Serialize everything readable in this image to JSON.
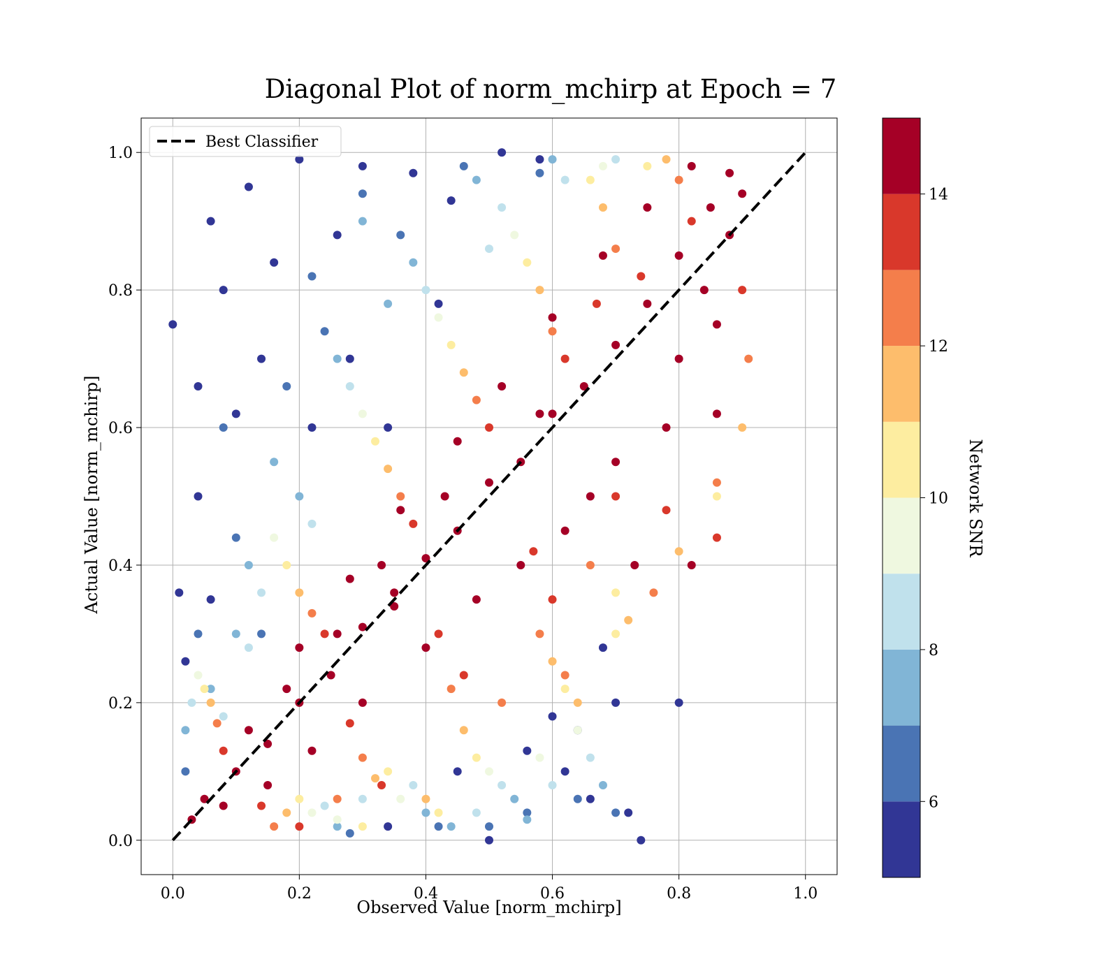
{
  "figure": {
    "title": "Diagonal Plot of norm_mchirp at Epoch = 7"
  },
  "chart_data": {
    "type": "scatter",
    "title": "Diagonal Plot of norm_mchirp at Epoch = 7",
    "xlabel": "Observed Value [norm_mchirp]",
    "ylabel": "Actual Value [norm_mchirp]",
    "xlim": [
      -0.05,
      1.05
    ],
    "ylim": [
      -0.05,
      1.05
    ],
    "x_ticks": [
      "0.0",
      "0.2",
      "0.4",
      "0.6",
      "0.8",
      "1.0"
    ],
    "y_ticks": [
      "0.0",
      "0.2",
      "0.4",
      "0.6",
      "0.8",
      "1.0"
    ],
    "grid": true,
    "legend": {
      "placement": "upper-left",
      "entries": [
        {
          "label": "Best Classifier",
          "style": "dashed",
          "color": "#000000"
        }
      ]
    },
    "reference_line": {
      "name": "Best Classifier",
      "x": [
        0.0,
        1.0
      ],
      "y": [
        0.0,
        1.0
      ]
    },
    "colorbar": {
      "label": "Network SNR",
      "range": [
        5,
        15
      ],
      "ticks": [
        "6",
        "8",
        "10",
        "12",
        "14"
      ],
      "bins": [
        {
          "from": 5,
          "to": 6,
          "color": "#313695"
        },
        {
          "from": 6,
          "to": 7,
          "color": "#4a74b4"
        },
        {
          "from": 7,
          "to": 8,
          "color": "#81b5d6"
        },
        {
          "from": 8,
          "to": 9,
          "color": "#c0e1ec"
        },
        {
          "from": 9,
          "to": 10,
          "color": "#eff8e0"
        },
        {
          "from": 10,
          "to": 11,
          "color": "#fdeda0"
        },
        {
          "from": 11,
          "to": 12,
          "color": "#fdbd6c"
        },
        {
          "from": 12,
          "to": 13,
          "color": "#f47e4b"
        },
        {
          "from": 13,
          "to": 14,
          "color": "#d9382b"
        },
        {
          "from": 14,
          "to": 15,
          "color": "#a50026"
        }
      ]
    },
    "series": [
      {
        "snr_bin": "14-15",
        "points": [
          [
            0.05,
            0.06
          ],
          [
            0.1,
            0.1
          ],
          [
            0.15,
            0.14
          ],
          [
            0.2,
            0.2
          ],
          [
            0.25,
            0.24
          ],
          [
            0.3,
            0.31
          ],
          [
            0.35,
            0.34
          ],
          [
            0.4,
            0.41
          ],
          [
            0.45,
            0.45
          ],
          [
            0.5,
            0.52
          ],
          [
            0.55,
            0.55
          ],
          [
            0.6,
            0.62
          ],
          [
            0.65,
            0.66
          ],
          [
            0.7,
            0.72
          ],
          [
            0.75,
            0.78
          ],
          [
            0.8,
            0.85
          ],
          [
            0.85,
            0.92
          ],
          [
            0.88,
            0.97
          ],
          [
            0.86,
            0.75
          ],
          [
            0.78,
            0.6
          ],
          [
            0.7,
            0.55
          ],
          [
            0.62,
            0.45
          ],
          [
            0.55,
            0.4
          ],
          [
            0.48,
            0.35
          ],
          [
            0.4,
            0.28
          ],
          [
            0.3,
            0.2
          ],
          [
            0.22,
            0.13
          ],
          [
            0.15,
            0.08
          ],
          [
            0.12,
            0.16
          ],
          [
            0.2,
            0.28
          ],
          [
            0.28,
            0.38
          ],
          [
            0.36,
            0.48
          ],
          [
            0.45,
            0.58
          ],
          [
            0.52,
            0.66
          ],
          [
            0.6,
            0.76
          ],
          [
            0.68,
            0.85
          ],
          [
            0.75,
            0.92
          ],
          [
            0.82,
            0.98
          ],
          [
            0.9,
            0.94
          ],
          [
            0.84,
            0.8
          ],
          [
            0.8,
            0.7
          ],
          [
            0.66,
            0.5
          ],
          [
            0.58,
            0.62
          ],
          [
            0.43,
            0.5
          ],
          [
            0.33,
            0.4
          ],
          [
            0.26,
            0.3
          ],
          [
            0.18,
            0.22
          ],
          [
            0.08,
            0.05
          ],
          [
            0.03,
            0.03
          ],
          [
            0.35,
            0.36
          ],
          [
            0.73,
            0.4
          ],
          [
            0.82,
            0.4
          ],
          [
            0.86,
            0.62
          ],
          [
            0.88,
            0.88
          ]
        ]
      },
      {
        "snr_bin": "13-14",
        "points": [
          [
            0.08,
            0.13
          ],
          [
            0.14,
            0.05
          ],
          [
            0.24,
            0.3
          ],
          [
            0.28,
            0.17
          ],
          [
            0.38,
            0.46
          ],
          [
            0.42,
            0.3
          ],
          [
            0.5,
            0.6
          ],
          [
            0.57,
            0.42
          ],
          [
            0.62,
            0.7
          ],
          [
            0.7,
            0.5
          ],
          [
            0.74,
            0.82
          ],
          [
            0.78,
            0.48
          ],
          [
            0.82,
            0.9
          ],
          [
            0.9,
            0.8
          ],
          [
            0.67,
            0.78
          ],
          [
            0.6,
            0.35
          ],
          [
            0.46,
            0.24
          ],
          [
            0.33,
            0.08
          ],
          [
            0.2,
            0.02
          ],
          [
            0.86,
            0.44
          ]
        ]
      },
      {
        "snr_bin": "12-13",
        "points": [
          [
            0.07,
            0.17
          ],
          [
            0.16,
            0.02
          ],
          [
            0.22,
            0.33
          ],
          [
            0.3,
            0.12
          ],
          [
            0.36,
            0.5
          ],
          [
            0.44,
            0.22
          ],
          [
            0.48,
            0.64
          ],
          [
            0.58,
            0.3
          ],
          [
            0.6,
            0.74
          ],
          [
            0.66,
            0.4
          ],
          [
            0.7,
            0.86
          ],
          [
            0.76,
            0.36
          ],
          [
            0.8,
            0.96
          ],
          [
            0.91,
            0.7
          ],
          [
            0.26,
            0.06
          ],
          [
            0.52,
            0.2
          ],
          [
            0.62,
            0.24
          ],
          [
            0.86,
            0.52
          ]
        ]
      },
      {
        "snr_bin": "11-12",
        "points": [
          [
            0.06,
            0.2
          ],
          [
            0.18,
            0.04
          ],
          [
            0.2,
            0.36
          ],
          [
            0.32,
            0.09
          ],
          [
            0.34,
            0.54
          ],
          [
            0.46,
            0.16
          ],
          [
            0.46,
            0.68
          ],
          [
            0.6,
            0.26
          ],
          [
            0.58,
            0.8
          ],
          [
            0.72,
            0.32
          ],
          [
            0.68,
            0.92
          ],
          [
            0.8,
            0.42
          ],
          [
            0.78,
            0.99
          ],
          [
            0.9,
            0.6
          ],
          [
            0.4,
            0.06
          ],
          [
            0.64,
            0.2
          ]
        ]
      },
      {
        "snr_bin": "10-11",
        "points": [
          [
            0.05,
            0.22
          ],
          [
            0.2,
            0.06
          ],
          [
            0.18,
            0.4
          ],
          [
            0.34,
            0.1
          ],
          [
            0.32,
            0.58
          ],
          [
            0.48,
            0.12
          ],
          [
            0.44,
            0.72
          ],
          [
            0.62,
            0.22
          ],
          [
            0.56,
            0.84
          ],
          [
            0.7,
            0.36
          ],
          [
            0.66,
            0.96
          ],
          [
            0.75,
            0.98
          ],
          [
            0.42,
            0.04
          ],
          [
            0.3,
            0.02
          ],
          [
            0.86,
            0.5
          ],
          [
            0.7,
            0.3
          ]
        ]
      },
      {
        "snr_bin": "9-10",
        "points": [
          [
            0.04,
            0.24
          ],
          [
            0.22,
            0.04
          ],
          [
            0.16,
            0.44
          ],
          [
            0.36,
            0.06
          ],
          [
            0.3,
            0.62
          ],
          [
            0.5,
            0.1
          ],
          [
            0.42,
            0.76
          ],
          [
            0.64,
            0.16
          ],
          [
            0.54,
            0.88
          ],
          [
            0.68,
            0.98
          ],
          [
            0.26,
            0.03
          ],
          [
            0.58,
            0.12
          ]
        ]
      },
      {
        "snr_bin": "8-9",
        "points": [
          [
            0.03,
            0.2
          ],
          [
            0.24,
            0.05
          ],
          [
            0.14,
            0.36
          ],
          [
            0.38,
            0.08
          ],
          [
            0.28,
            0.66
          ],
          [
            0.52,
            0.08
          ],
          [
            0.4,
            0.8
          ],
          [
            0.66,
            0.12
          ],
          [
            0.52,
            0.92
          ],
          [
            0.7,
            0.99
          ],
          [
            0.12,
            0.28
          ],
          [
            0.3,
            0.06
          ],
          [
            0.48,
            0.04
          ],
          [
            0.6,
            0.08
          ],
          [
            0.62,
            0.96
          ],
          [
            0.08,
            0.18
          ],
          [
            0.22,
            0.46
          ],
          [
            0.5,
            0.86
          ]
        ]
      },
      {
        "snr_bin": "7-8",
        "points": [
          [
            0.02,
            0.16
          ],
          [
            0.26,
            0.02
          ],
          [
            0.12,
            0.4
          ],
          [
            0.4,
            0.04
          ],
          [
            0.26,
            0.7
          ],
          [
            0.54,
            0.06
          ],
          [
            0.38,
            0.84
          ],
          [
            0.68,
            0.08
          ],
          [
            0.48,
            0.96
          ],
          [
            0.6,
            0.99
          ],
          [
            0.1,
            0.3
          ],
          [
            0.2,
            0.5
          ],
          [
            0.34,
            0.78
          ],
          [
            0.44,
            0.02
          ],
          [
            0.56,
            0.03
          ],
          [
            0.06,
            0.22
          ],
          [
            0.16,
            0.55
          ],
          [
            0.3,
            0.9
          ]
        ]
      },
      {
        "snr_bin": "6-7",
        "points": [
          [
            0.02,
            0.1
          ],
          [
            0.28,
            0.01
          ],
          [
            0.1,
            0.44
          ],
          [
            0.42,
            0.02
          ],
          [
            0.24,
            0.74
          ],
          [
            0.56,
            0.04
          ],
          [
            0.36,
            0.88
          ],
          [
            0.7,
            0.04
          ],
          [
            0.46,
            0.98
          ],
          [
            0.58,
            0.97
          ],
          [
            0.08,
            0.6
          ],
          [
            0.18,
            0.66
          ],
          [
            0.3,
            0.94
          ],
          [
            0.5,
            0.02
          ],
          [
            0.64,
            0.06
          ],
          [
            0.14,
            0.3
          ],
          [
            0.04,
            0.3
          ],
          [
            0.22,
            0.82
          ]
        ]
      },
      {
        "snr_bin": "5-6",
        "points": [
          [
            0.01,
            0.36
          ],
          [
            0.0,
            0.75
          ],
          [
            0.04,
            0.66
          ],
          [
            0.06,
            0.9
          ],
          [
            0.08,
            0.8
          ],
          [
            0.12,
            0.95
          ],
          [
            0.14,
            0.7
          ],
          [
            0.2,
            0.99
          ],
          [
            0.26,
            0.88
          ],
          [
            0.3,
            0.98
          ],
          [
            0.38,
            0.97
          ],
          [
            0.44,
            0.93
          ],
          [
            0.52,
            1.0
          ],
          [
            0.58,
            0.99
          ],
          [
            0.6,
            0.18
          ],
          [
            0.62,
            0.1
          ],
          [
            0.66,
            0.06
          ],
          [
            0.68,
            0.28
          ],
          [
            0.7,
            0.2
          ],
          [
            0.72,
            0.04
          ],
          [
            0.74,
            0.0
          ],
          [
            0.5,
            0.0
          ],
          [
            0.34,
            0.02
          ],
          [
            0.04,
            0.5
          ],
          [
            0.02,
            0.26
          ],
          [
            0.1,
            0.62
          ],
          [
            0.16,
            0.84
          ],
          [
            0.22,
            0.6
          ],
          [
            0.28,
            0.7
          ],
          [
            0.34,
            0.6
          ],
          [
            0.42,
            0.78
          ],
          [
            0.06,
            0.35
          ],
          [
            0.64,
            0.16
          ],
          [
            0.56,
            0.13
          ],
          [
            0.45,
            0.1
          ],
          [
            0.8,
            0.2
          ]
        ]
      }
    ]
  }
}
